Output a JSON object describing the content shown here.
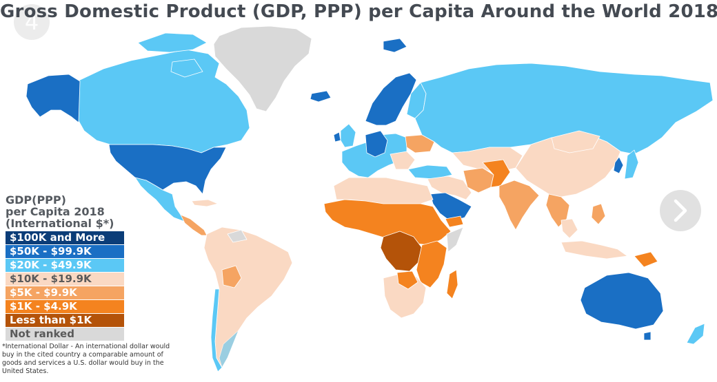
{
  "title": "Gross Domestic Product (GDP, PPP) per Capita Around the World 2018",
  "badge": "4",
  "legend": {
    "title_lines": [
      "GDP(PPP)",
      "per Capita 2018",
      "(International $*)"
    ],
    "items": [
      {
        "label": "$100K and More",
        "color": "#0b3d78",
        "text_color": "#ffffff"
      },
      {
        "label": "$50K - $99.9K",
        "color": "#1a6fc4",
        "text_color": "#ffffff"
      },
      {
        "label": "$20K - $49.9K",
        "color": "#5bc8f5",
        "text_color": "#ffffff"
      },
      {
        "label": "$10K - $19.9K",
        "color": "#fad9c3",
        "text_color": "#5a5a5a"
      },
      {
        "label": "$5K - $9.9K",
        "color": "#f5a462",
        "text_color": "#ffffff"
      },
      {
        "label": "$1K - $4.9K",
        "color": "#f4831f",
        "text_color": "#ffffff"
      },
      {
        "label": "Less than $1K",
        "color": "#b45309",
        "text_color": "#ffffff"
      },
      {
        "label": "Not ranked",
        "color": "#d9d9d9",
        "text_color": "#5a5a5a"
      }
    ]
  },
  "footnote": "*International Dollar - An international dollar would buy in the cited country a comparable amount of goods and services a U.S. dollar would buy in the United States.",
  "colors": {
    "tier100": "#0b3d78",
    "tier50": "#1a6fc4",
    "tier20": "#5bc8f5",
    "tier10": "#fad9c3",
    "tier5": "#f5a462",
    "tier1": "#f4831f",
    "tierLow": "#b45309",
    "notRanked": "#d9d9d9"
  },
  "controls": {
    "next_icon": "chevron-right-icon"
  }
}
